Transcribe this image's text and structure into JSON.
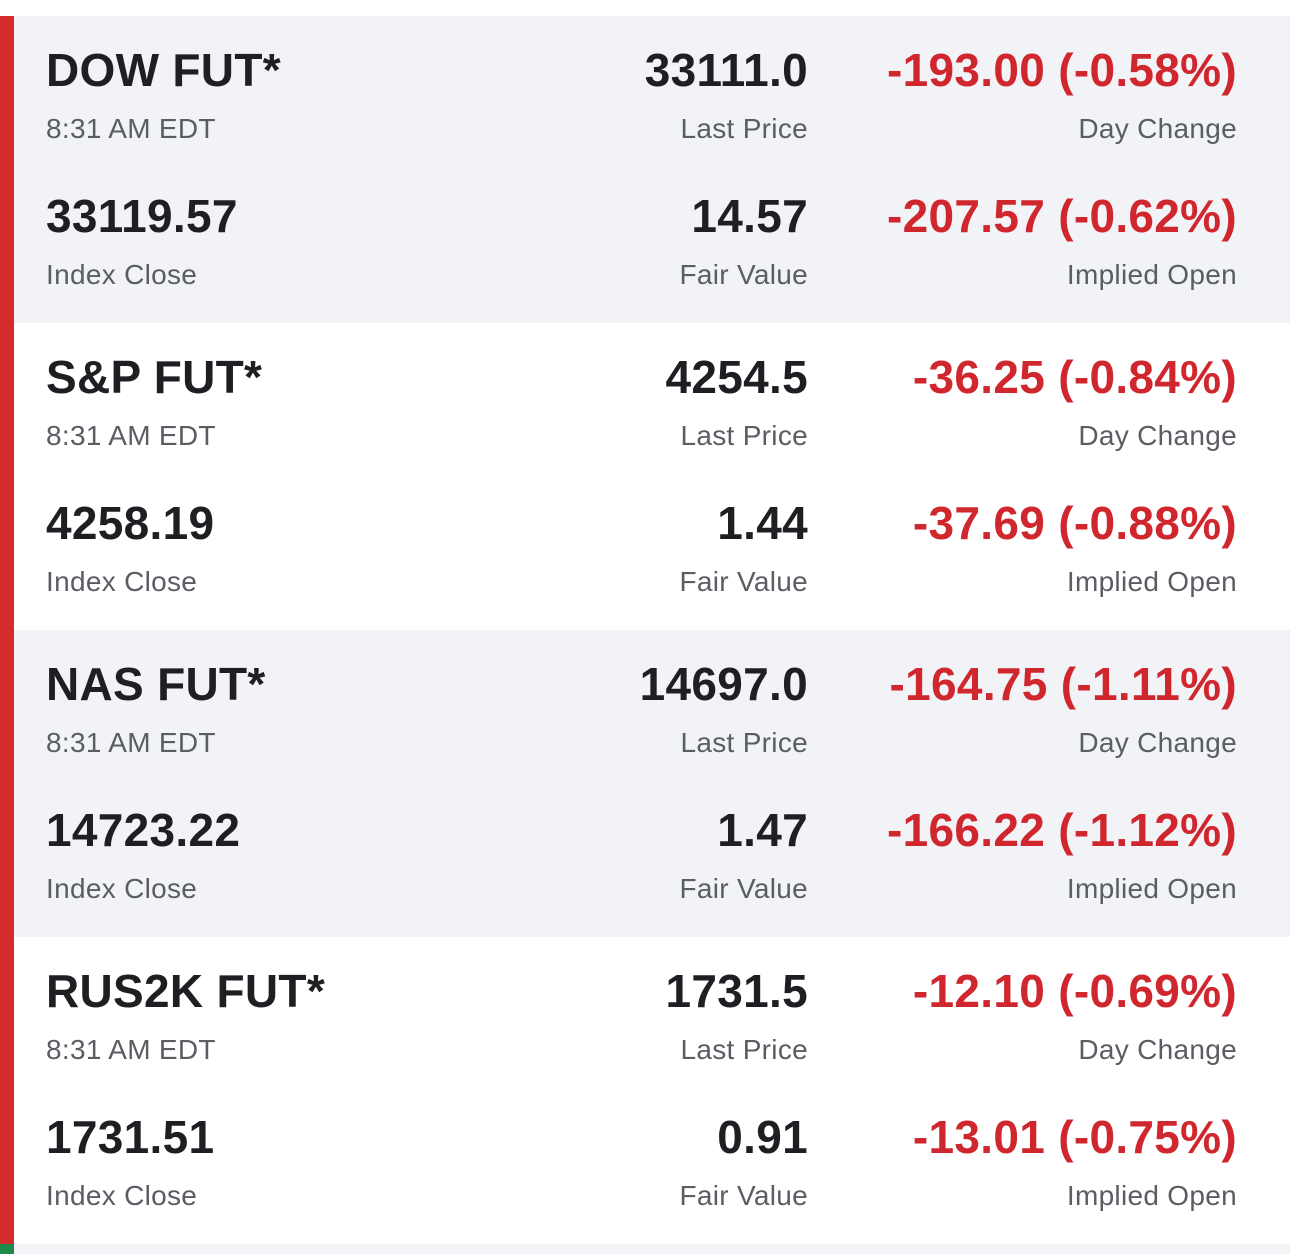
{
  "colors": {
    "negative": "#d0262e",
    "indicator_negative": "#d52b2b",
    "indicator_positive": "#1f8a4c",
    "shaded_row": "#f2f3f6"
  },
  "futures": [
    {
      "name": "DOW FUT*",
      "time": "8:31 AM EDT",
      "last_price": "33111.0",
      "last_price_label": "Last Price",
      "day_change": "-193.00 (-0.58%)",
      "day_change_label": "Day Change",
      "index_close": "33119.57",
      "index_close_label": "Index Close",
      "fair_value": "14.57",
      "fair_value_label": "Fair Value",
      "implied_open": "-207.57 (-0.62%)",
      "implied_open_label": "Implied Open"
    },
    {
      "name": "S&P FUT*",
      "time": "8:31 AM EDT",
      "last_price": "4254.5",
      "last_price_label": "Last Price",
      "day_change": "-36.25 (-0.84%)",
      "day_change_label": "Day Change",
      "index_close": "4258.19",
      "index_close_label": "Index Close",
      "fair_value": "1.44",
      "fair_value_label": "Fair Value",
      "implied_open": "-37.69 (-0.88%)",
      "implied_open_label": "Implied Open"
    },
    {
      "name": "NAS FUT*",
      "time": "8:31 AM EDT",
      "last_price": "14697.0",
      "last_price_label": "Last Price",
      "day_change": "-164.75 (-1.11%)",
      "day_change_label": "Day Change",
      "index_close": "14723.22",
      "index_close_label": "Index Close",
      "fair_value": "1.47",
      "fair_value_label": "Fair Value",
      "implied_open": "-166.22 (-1.12%)",
      "implied_open_label": "Implied Open"
    },
    {
      "name": "RUS2K FUT*",
      "time": "8:31 AM EDT",
      "last_price": "1731.5",
      "last_price_label": "Last Price",
      "day_change": "-12.10 (-0.69%)",
      "day_change_label": "Day Change",
      "index_close": "1731.51",
      "index_close_label": "Index Close",
      "fair_value": "0.91",
      "fair_value_label": "Fair Value",
      "implied_open": "-13.01 (-0.75%)",
      "implied_open_label": "Implied Open"
    }
  ]
}
